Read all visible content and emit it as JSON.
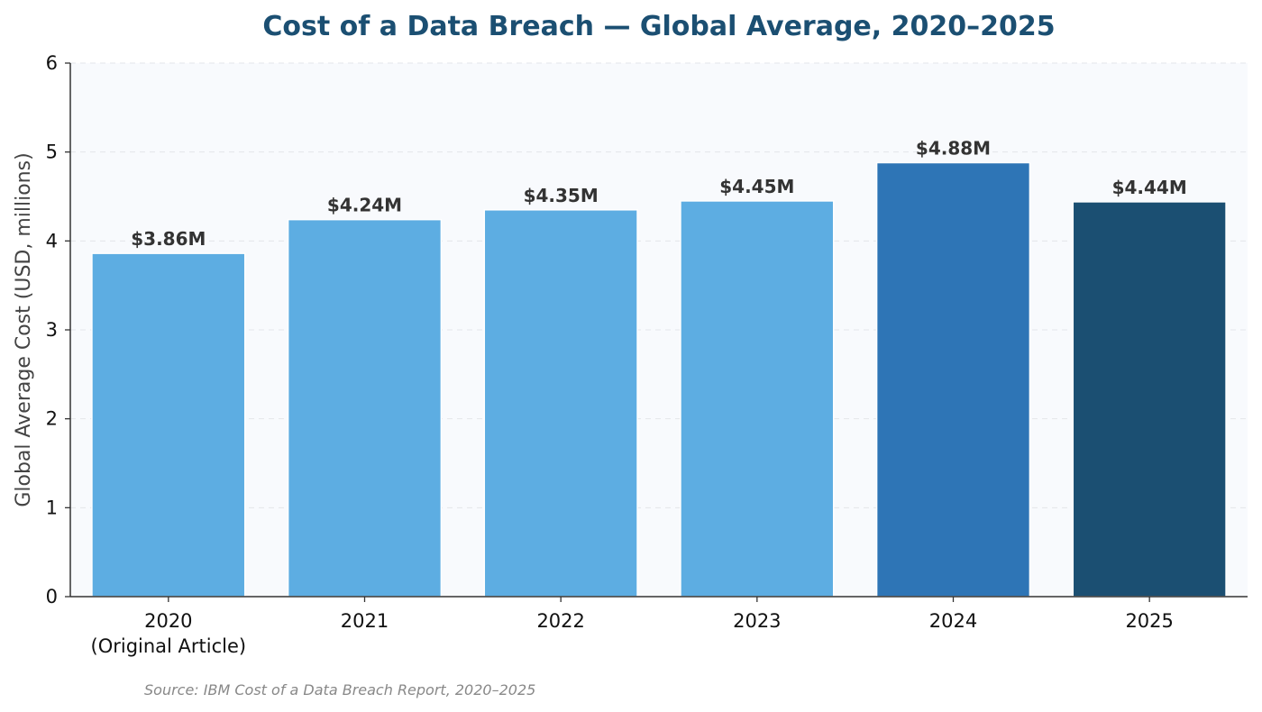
{
  "chart_data": {
    "type": "bar",
    "title": "Cost of a Data Breach — Global Average, 2020–2025",
    "ylabel": "Global Average Cost (USD, millions)",
    "xlabel": "",
    "categories": [
      [
        "2020",
        "(Original Article)"
      ],
      [
        "2021"
      ],
      [
        "2022"
      ],
      [
        "2023"
      ],
      [
        "2024"
      ],
      [
        "2025"
      ]
    ],
    "values": [
      3.86,
      4.24,
      4.35,
      4.45,
      4.88,
      4.44
    ],
    "data_labels": [
      "$3.86M",
      "$4.24M",
      "$4.35M",
      "$4.45M",
      "$4.88M",
      "$4.44M"
    ],
    "bar_colors": [
      "#5DADE2",
      "#5DADE2",
      "#5DADE2",
      "#5DADE2",
      "#2E75B6",
      "#1B4F72"
    ],
    "ylim": [
      0,
      6
    ],
    "yticks": [
      0,
      1,
      2,
      3,
      4,
      5,
      6
    ],
    "grid": true,
    "legend": "none",
    "source": "Source: IBM Cost of a Data Breach Report, 2020–2025",
    "colors": {
      "title": "#1B4F72",
      "plot_background": "#F8FAFD",
      "grid": "#E3E6EA",
      "axis": "#333333"
    }
  }
}
